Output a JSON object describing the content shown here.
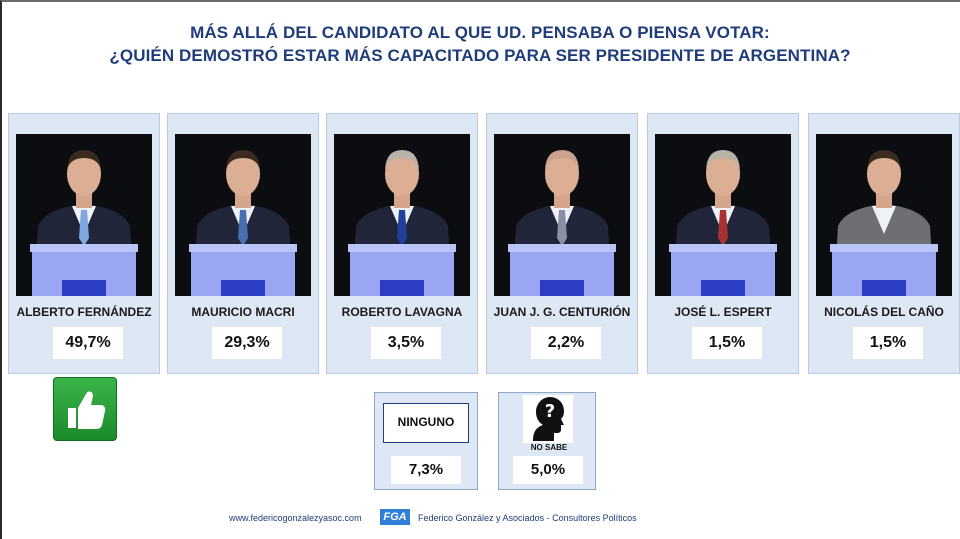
{
  "title": {
    "line1": "MÁS ALLÁ DEL CANDIDATO AL QUE UD. PENSABA O PIENSA VOTAR:",
    "line2": "¿QUIÉN DEMOSTRÓ ESTAR MÁS CAPACITADO PARA SER PRESIDENTE DE ARGENTINA?"
  },
  "chart_data": {
    "type": "table",
    "title": "MÁS ALLÁ DEL CANDIDATO AL QUE UD. PENSABA O PIENSA VOTAR: ¿QUIÉN DEMOSTRÓ ESTAR MÁS CAPACITADO PARA SER PRESIDENTE DE ARGENTINA?",
    "categories": [
      "ALBERTO FERNÁNDEZ",
      "MAURICIO MACRI",
      "ROBERTO LAVAGNA",
      "JUAN J. G. CENTURIÓN",
      "JOSÉ L. ESPERT",
      "NICOLÁS DEL CAÑO",
      "NINGUNO",
      "NO SABE"
    ],
    "values": [
      49.7,
      29.3,
      3.5,
      2.2,
      1.5,
      1.5,
      7.3,
      5.0
    ],
    "labels": [
      "49,7%",
      "29,3%",
      "3,5%",
      "2,2%",
      "1,5%",
      "1,5%",
      "7,3%",
      "5,0%"
    ]
  },
  "candidates": [
    {
      "name": "ALBERTO FERNÁNDEZ",
      "pct": "49,7%",
      "tie": "#7fa7e0"
    },
    {
      "name": "MAURICIO MACRI",
      "pct": "29,3%",
      "tie": "#4a6fb0"
    },
    {
      "name": "ROBERTO LAVAGNA",
      "pct": "3,5%",
      "tie": "#1f3f9a"
    },
    {
      "name": "JUAN J. G. CENTURIÓN",
      "pct": "2,2%",
      "tie": "#8a8fa5"
    },
    {
      "name": "JOSÉ L. ESPERT",
      "pct": "1,5%",
      "tie": "#a83232"
    },
    {
      "name": "NICOLÁS DEL CAÑO",
      "pct": "1,5%",
      "tie": "none"
    }
  ],
  "others": {
    "ninguno": {
      "label": "NINGUNO",
      "pct": "7,3%"
    },
    "nosabe": {
      "label": "NO SABE",
      "pct": "5,0%"
    }
  },
  "colors": {
    "title": "#1f3d7a",
    "card_bg": "#dde8f4",
    "podium": "#9aa6f2",
    "thumb_green": "#2aa13a"
  },
  "icons": {
    "winner": "thumbs-up-icon",
    "no_sabe": "question-head-icon",
    "logo": "fga-logo"
  },
  "footer": {
    "url": "www.federicogonzalezyasoc.com",
    "logo_text": "FGA",
    "company": "Federico González y Asociados - Consultores Políticos"
  }
}
